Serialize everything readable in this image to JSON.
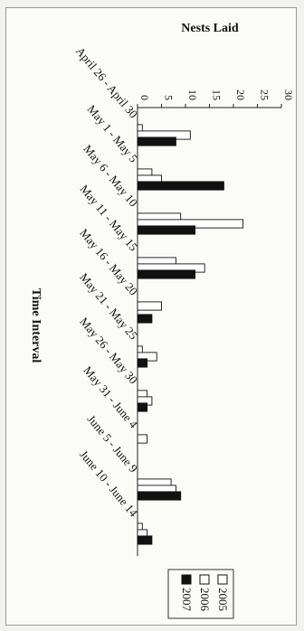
{
  "chart_data": {
    "type": "bar",
    "orientation": "horizontal",
    "title": "Nests Laid",
    "xlabel": "",
    "ylabel": "Time Interval",
    "categories": [
      "April 26 - April 30",
      "May 1 - May 5",
      "May 6 - May 10",
      "May 11 - May 15",
      "May 16 - May 20",
      "May 21 - May 25",
      "May 26 - May 30",
      "May 31 - June 4",
      "June 5 - June 9",
      "June 10 - June 14"
    ],
    "series": [
      {
        "name": "2005",
        "color": "#ffffff",
        "values": [
          1,
          3,
          9,
          8,
          5,
          1,
          2,
          2,
          7,
          1
        ]
      },
      {
        "name": "2006",
        "color": "#ffffff",
        "values": [
          11,
          5,
          22,
          14,
          0,
          4,
          3,
          0,
          8,
          2
        ]
      },
      {
        "name": "2007",
        "color": "#111111",
        "values": [
          8,
          18,
          12,
          12,
          3,
          2,
          2,
          0,
          9,
          3
        ]
      }
    ],
    "value_axis": {
      "min": 0,
      "max": 30,
      "ticks": [
        0,
        5,
        10,
        15,
        20,
        25,
        30
      ]
    },
    "legend": {
      "placement": "bottom-right"
    },
    "grid": false
  }
}
